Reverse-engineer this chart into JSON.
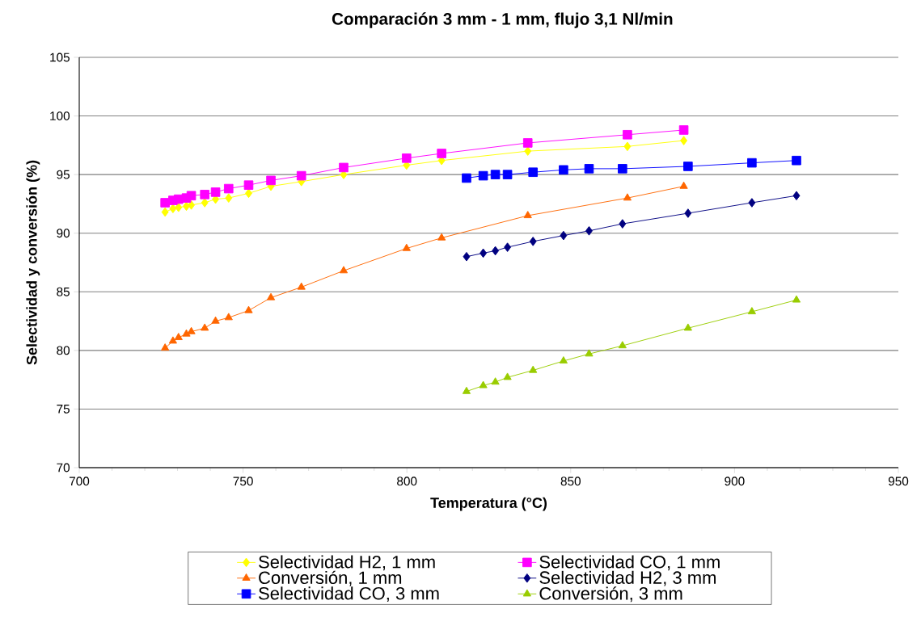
{
  "chart_data": {
    "type": "line",
    "title": "Comparación 3 mm - 1 mm, flujo 3,1 Nl/min",
    "xlabel": "Temperatura (°C)",
    "ylabel": "Selectividad y conversión (%)",
    "xlim": [
      700,
      950
    ],
    "ylim": [
      70,
      105
    ],
    "xticks": [
      700,
      750,
      800,
      850,
      900,
      950
    ],
    "yticks": [
      70,
      75,
      80,
      85,
      90,
      95,
      100,
      105
    ],
    "grid": "y",
    "legend": "bottom",
    "series": [
      {
        "name": "Selectividad H2, 1 mm",
        "color": "#ffff00",
        "marker": "diamond",
        "x": [
          726.2,
          728.6,
          730.3,
          732.7,
          734.2,
          738.3,
          741.6,
          745.6,
          751.7,
          758.5,
          767.8,
          780.7,
          799.9,
          810.6,
          836.9,
          867.3,
          884.5
        ],
        "values": [
          91.8,
          92.1,
          92.2,
          92.3,
          92.4,
          92.6,
          92.9,
          93.0,
          93.4,
          94.0,
          94.4,
          95.0,
          95.8,
          96.2,
          97.0,
          97.4,
          97.9
        ]
      },
      {
        "name": "Selectividad CO, 1 mm",
        "color": "#ff00ff",
        "marker": "square",
        "x": [
          726.2,
          728.6,
          730.3,
          732.7,
          734.2,
          738.3,
          741.6,
          745.6,
          751.7,
          758.5,
          767.8,
          780.7,
          799.9,
          810.6,
          836.9,
          867.3,
          884.5
        ],
        "values": [
          92.6,
          92.8,
          92.9,
          93.0,
          93.2,
          93.3,
          93.5,
          93.8,
          94.1,
          94.5,
          94.9,
          95.6,
          96.4,
          96.8,
          97.7,
          98.4,
          98.8
        ]
      },
      {
        "name": "Conversión, 1 mm",
        "color": "#ff6600",
        "marker": "triangle",
        "x": [
          726.2,
          728.6,
          730.3,
          732.7,
          734.2,
          738.3,
          741.6,
          745.6,
          751.7,
          758.5,
          767.8,
          780.7,
          799.9,
          810.6,
          836.9,
          867.3,
          884.5
        ],
        "values": [
          80.2,
          80.8,
          81.1,
          81.4,
          81.6,
          81.9,
          82.5,
          82.8,
          83.4,
          84.5,
          85.4,
          86.8,
          88.7,
          89.6,
          91.5,
          93.0,
          94.0
        ]
      },
      {
        "name": "Selectividad H2, 3 mm",
        "color": "#000080",
        "marker": "diamond",
        "x": [
          818.2,
          823.3,
          827.0,
          830.7,
          838.5,
          847.8,
          855.6,
          865.8,
          885.8,
          905.3,
          918.9
        ],
        "values": [
          88.0,
          88.3,
          88.5,
          88.8,
          89.3,
          89.8,
          90.2,
          90.8,
          91.7,
          92.6,
          93.2
        ]
      },
      {
        "name": "Selectividad CO, 3 mm",
        "color": "#0000ff",
        "marker": "square",
        "x": [
          818.2,
          823.3,
          827.0,
          830.7,
          838.5,
          847.8,
          855.6,
          865.8,
          885.8,
          905.3,
          918.9
        ],
        "values": [
          94.7,
          94.9,
          95.0,
          95.0,
          95.2,
          95.4,
          95.5,
          95.5,
          95.7,
          96.0,
          96.2
        ]
      },
      {
        "name": "Conversión, 3 mm",
        "color": "#99cc00",
        "marker": "triangle",
        "x": [
          818.2,
          823.3,
          827.0,
          830.7,
          838.5,
          847.8,
          855.6,
          865.8,
          885.8,
          905.3,
          918.9
        ],
        "values": [
          76.5,
          77.0,
          77.3,
          77.7,
          78.3,
          79.1,
          79.7,
          80.4,
          81.9,
          83.3,
          84.3
        ]
      }
    ]
  }
}
